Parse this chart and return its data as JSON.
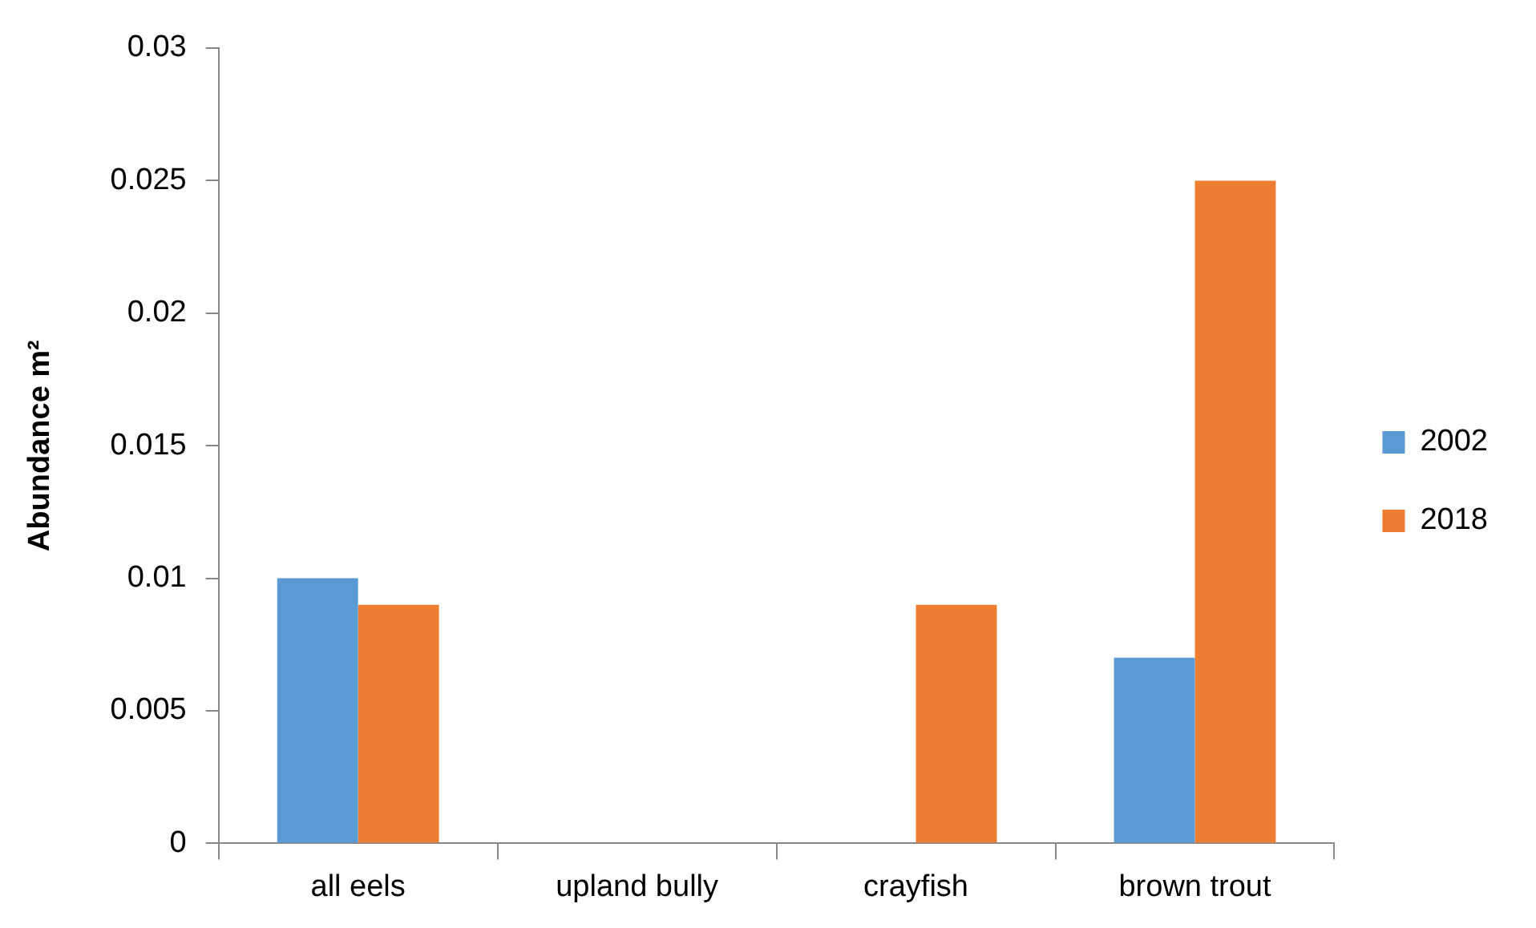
{
  "chart_data": {
    "type": "bar",
    "ylabel": "Abundance m²",
    "categories": [
      "all eels",
      "upland bully",
      "crayfish",
      "brown trout"
    ],
    "series": [
      {
        "name": "2002",
        "color": "#5b9bd5",
        "values": [
          0.01,
          0,
          0,
          0.007
        ]
      },
      {
        "name": "2018",
        "color": "#ed7d31",
        "values": [
          0.009,
          0,
          0.009,
          0.025
        ]
      }
    ],
    "ylim": [
      0,
      0.03
    ],
    "yticks": [
      0,
      0.005,
      0.01,
      0.015,
      0.02,
      0.025,
      0.03
    ],
    "grid": false,
    "legend": "right"
  }
}
